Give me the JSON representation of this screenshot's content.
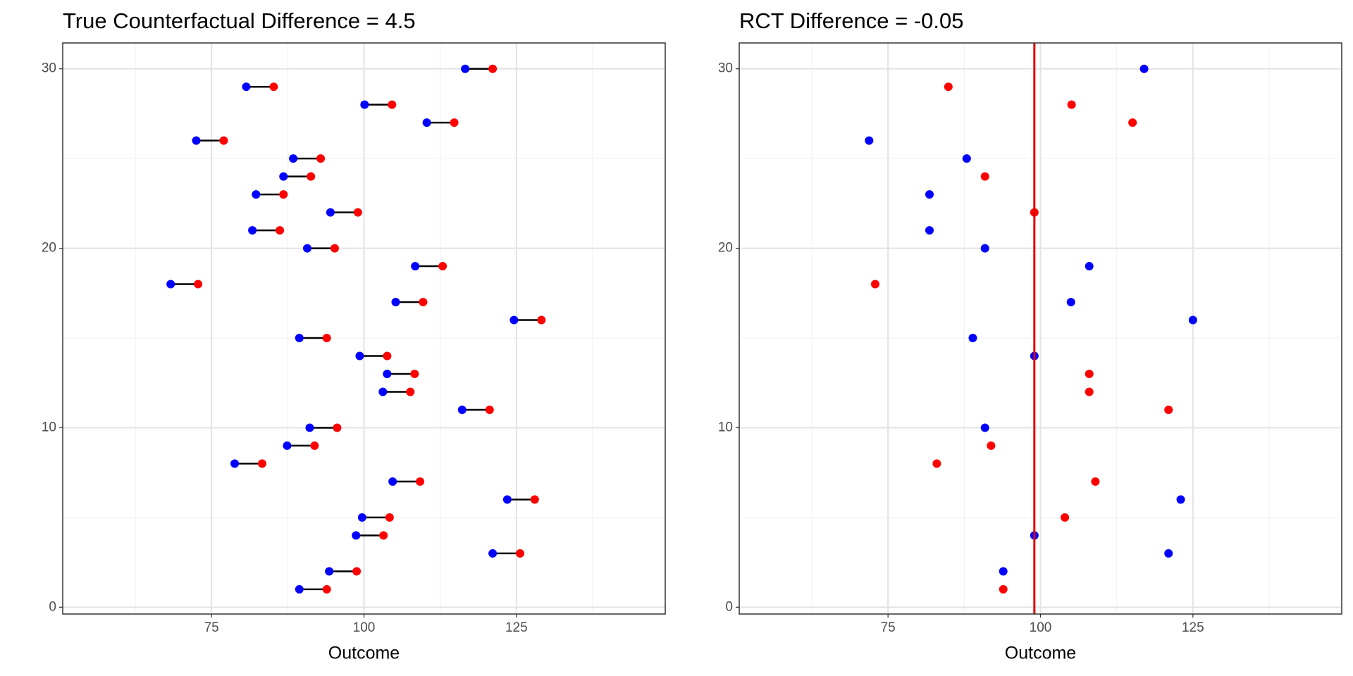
{
  "chart_data": [
    {
      "type": "dumbbell",
      "title": "True Counterfactual Difference = 4.5",
      "x_label": "Outcome",
      "segment_color": "#000000",
      "y": [
        30,
        29,
        28,
        27,
        26,
        25,
        24,
        23,
        22,
        21,
        20,
        19,
        18,
        17,
        16,
        15,
        14,
        13,
        12,
        11,
        10,
        9,
        8,
        7,
        6,
        5,
        4,
        3,
        2,
        1
      ],
      "series": [
        {
          "color": "#0000ff",
          "x": [
            116.6,
            80.7,
            100.1,
            110.3,
            72.5,
            88.4,
            86.8,
            82.3,
            94.5,
            81.7,
            90.7,
            108.4,
            68.3,
            105.2,
            124.6,
            89.4,
            99.3,
            103.8,
            103.1,
            116.1,
            91.1,
            87.4,
            78.8,
            104.7,
            123.5,
            99.7,
            98.7,
            121.1,
            94.3,
            89.4
          ]
        },
        {
          "color": "#ff0000",
          "x": [
            121.1,
            85.2,
            104.6,
            114.8,
            77.0,
            92.9,
            91.3,
            86.8,
            99.0,
            86.2,
            95.2,
            112.9,
            72.8,
            109.7,
            129.1,
            93.9,
            103.8,
            108.3,
            107.6,
            120.6,
            95.6,
            91.9,
            83.3,
            109.2,
            128.0,
            104.2,
            103.2,
            125.6,
            98.8,
            93.9
          ]
        }
      ],
      "xlim": [
        50.6,
        149.4
      ],
      "ylim": [
        -0.38,
        31.44
      ],
      "xticks": [
        75,
        100,
        125
      ],
      "yticks": [
        0,
        10,
        20,
        30
      ],
      "xminor": [
        62.5,
        87.5,
        112.5,
        137.5
      ],
      "yminor": [
        5,
        15,
        25
      ],
      "grid": true
    },
    {
      "type": "scatter",
      "title": "RCT Difference = -0.05",
      "x_label": "Outcome",
      "vline": 99.0,
      "vline_color": "#dd0000",
      "series": [
        {
          "color": "#0000ff",
          "x": [
            117.0,
            71.9,
            87.9,
            81.8,
            81.8,
            90.9,
            108.0,
            105.0,
            125.0,
            88.9,
            99.0,
            90.9,
            123.0,
            99.0,
            121.0,
            93.9
          ],
          "y": [
            30,
            26,
            25,
            23,
            21,
            20,
            19,
            17,
            16,
            15,
            14,
            10,
            6,
            4,
            3,
            2
          ]
        },
        {
          "color": "#ff0000",
          "x": [
            84.9,
            105.1,
            115.1,
            90.9,
            99.0,
            72.9,
            108.0,
            108.0,
            121.0,
            91.9,
            83.0,
            109.0,
            104.0,
            93.9
          ],
          "y": [
            29,
            28,
            27,
            24,
            22,
            18,
            13,
            12,
            11,
            9,
            8,
            7,
            5,
            1
          ]
        }
      ],
      "xlim": [
        50.6,
        149.4
      ],
      "ylim": [
        -0.38,
        31.44
      ],
      "xticks": [
        75,
        100,
        125
      ],
      "yticks": [
        0,
        10,
        20,
        30
      ],
      "xminor": [
        62.5,
        87.5,
        112.5,
        137.5
      ],
      "yminor": [
        5,
        15,
        25
      ],
      "grid": true
    }
  ]
}
